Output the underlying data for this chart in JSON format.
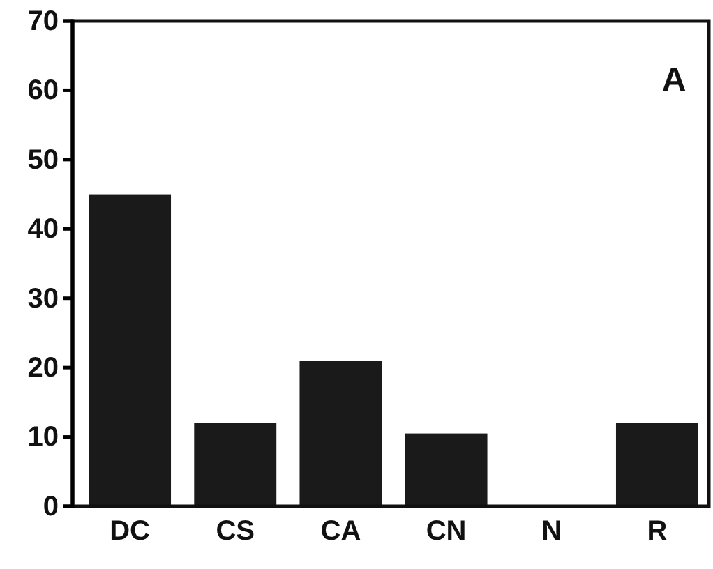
{
  "chart_data": {
    "type": "bar",
    "categories": [
      "DC",
      "CS",
      "CA",
      "CN",
      "N",
      "R"
    ],
    "values": [
      45,
      12,
      21,
      10.5,
      0,
      12
    ],
    "color": "#1a1a1a",
    "ylim": [
      0,
      70
    ],
    "yticks": [
      0,
      10,
      20,
      30,
      40,
      50,
      60,
      70
    ],
    "grid": false,
    "annotations": [
      "A"
    ]
  }
}
